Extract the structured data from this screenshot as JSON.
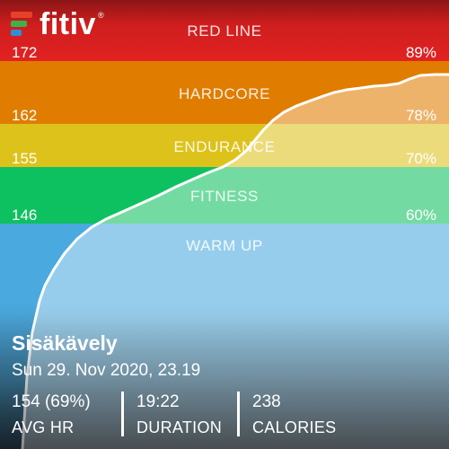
{
  "logo": {
    "text": "fitiv",
    "registered": "®"
  },
  "zones": [
    {
      "name": "RED LINE",
      "hr": "172",
      "pct": "89%"
    },
    {
      "name": "HARDCORE",
      "hr": "162",
      "pct": "78%"
    },
    {
      "name": "ENDURANCE",
      "hr": "155",
      "pct": "70%"
    },
    {
      "name": "FITNESS",
      "hr": "146",
      "pct": "60%"
    },
    {
      "name": "WARM UP"
    }
  ],
  "workout": {
    "title": "Sisäkävely",
    "date": "Sun 29. Nov 2020, 23.19"
  },
  "stats": [
    {
      "value": "154 (69%)",
      "label": "AVG HR"
    },
    {
      "value": "19:22",
      "label": "DURATION"
    },
    {
      "value": "238",
      "label": "CALORIES"
    }
  ],
  "colors": {
    "red_line": "#e12222",
    "hardcore": "#e07d00",
    "endurance": "#ddc21c",
    "fitness": "#0ec160",
    "warm_up": "#4aa9df"
  }
}
